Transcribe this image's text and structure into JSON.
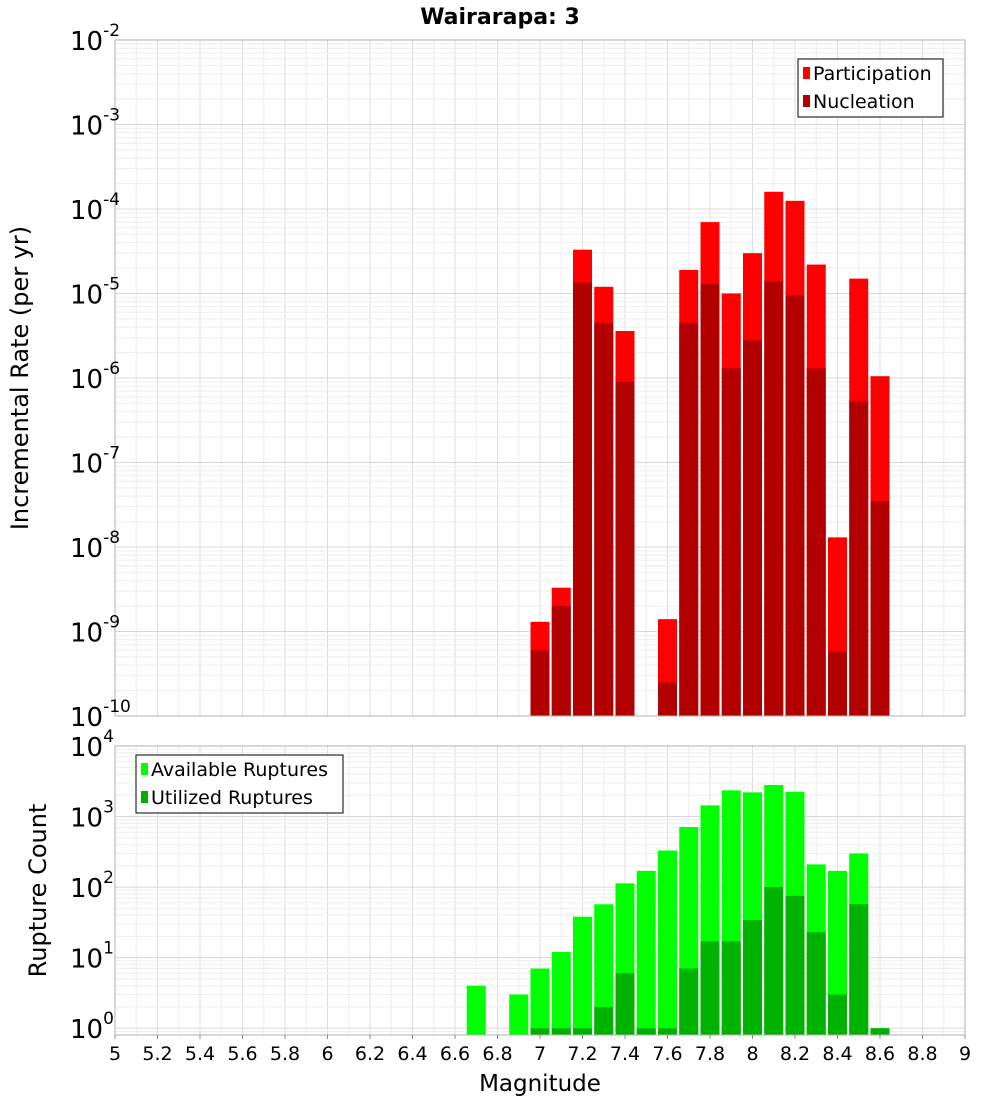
{
  "chart_data": [
    {
      "type": "bar",
      "title": "Wairarapa: 3",
      "xlabel": "",
      "ylabel": "Incremental Rate (per yr)",
      "yscale": "log",
      "ylim": [
        1e-10,
        0.01
      ],
      "xlim": [
        5,
        9
      ],
      "y_tick_exponents": [
        -10,
        -9,
        -8,
        -7,
        -6,
        -5,
        -4,
        -3,
        -2
      ],
      "grid": true,
      "legend_position": "top-right",
      "series": [
        {
          "name": "Participation",
          "color": "#ff0000",
          "x": [
            7.0,
            7.1,
            7.2,
            7.3,
            7.4,
            7.6,
            7.7,
            7.8,
            7.9,
            8.0,
            8.1,
            8.2,
            8.3,
            8.4,
            8.5,
            8.6
          ],
          "values": [
            1.3e-09,
            3.3e-09,
            3.3e-05,
            1.2e-05,
            3.6e-06,
            1.4e-09,
            1.9e-05,
            7e-05,
            1e-05,
            3e-05,
            0.00016,
            0.000125,
            2.2e-05,
            1.3e-08,
            1.5e-05,
            1.05e-06
          ]
        },
        {
          "name": "Nucleation",
          "color": "#b20000",
          "x": [
            7.0,
            7.1,
            7.2,
            7.3,
            7.4,
            7.6,
            7.7,
            7.8,
            7.9,
            8.0,
            8.1,
            8.2,
            8.3,
            8.4,
            8.5,
            8.6
          ],
          "values": [
            6e-10,
            2e-09,
            1.35e-05,
            4.5e-06,
            9e-07,
            2.5e-10,
            4.5e-06,
            1.3e-05,
            1.3e-06,
            2.8e-06,
            1.4e-05,
            9.5e-06,
            1.3e-06,
            5.8e-10,
            5.3e-07,
            3.5e-08
          ]
        }
      ]
    },
    {
      "type": "bar",
      "title": "",
      "xlabel": "Magnitude",
      "ylabel": "Rupture Count",
      "yscale": "log",
      "ylim": [
        0.8,
        10000.0
      ],
      "xlim": [
        5,
        9
      ],
      "x_ticks": [
        "5",
        "5.2",
        "5.4",
        "5.6",
        "5.8",
        "6",
        "6.2",
        "6.4",
        "6.6",
        "6.8",
        "7",
        "7.2",
        "7.4",
        "7.6",
        "7.8",
        "8",
        "8.2",
        "8.4",
        "8.6",
        "8.8",
        "9"
      ],
      "y_tick_exponents": [
        0,
        1,
        2,
        3,
        4
      ],
      "grid": true,
      "legend_position": "top-left",
      "series": [
        {
          "name": "Available Ruptures",
          "color": "#00ff00",
          "x": [
            6.7,
            6.9,
            7.0,
            7.1,
            7.2,
            7.3,
            7.4,
            7.5,
            7.6,
            7.7,
            7.8,
            7.9,
            8.0,
            8.1,
            8.2,
            8.3,
            8.4,
            8.5
          ],
          "values": [
            4,
            3,
            7,
            12,
            38,
            57,
            113,
            170,
            330,
            710,
            1440,
            2350,
            2200,
            2800,
            2250,
            210,
            170,
            300
          ]
        },
        {
          "name": "Utilized Ruptures",
          "color": "#00b200",
          "x": [
            7.0,
            7.1,
            7.2,
            7.3,
            7.4,
            7.5,
            7.6,
            7.7,
            7.8,
            7.9,
            8.0,
            8.1,
            8.2,
            8.3,
            8.4,
            8.5,
            8.6
          ],
          "values": [
            1,
            1,
            1,
            2,
            6,
            1,
            1,
            7,
            17,
            17,
            34,
            100,
            75,
            23,
            3,
            57,
            1
          ]
        }
      ]
    }
  ]
}
